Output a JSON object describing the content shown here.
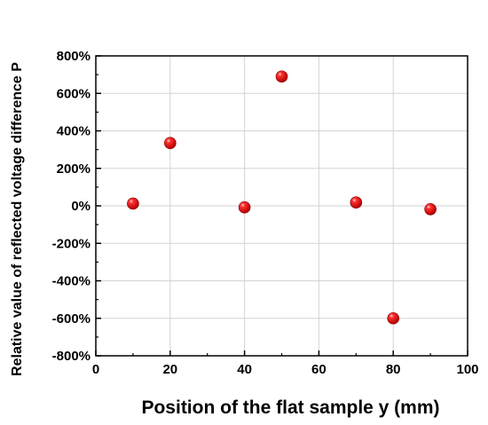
{
  "chart_data": {
    "type": "scatter",
    "title": "",
    "xlabel": "Position of the flat sample y (mm)",
    "ylabel": "Relative value of reflected voltage difference P",
    "xlim": [
      0,
      100
    ],
    "ylim": [
      -800,
      800
    ],
    "x_ticks": [
      0,
      20,
      40,
      60,
      80,
      100
    ],
    "y_ticks": [
      -800,
      -600,
      -400,
      -200,
      0,
      200,
      400,
      600,
      800
    ],
    "y_tick_labels": [
      "-800%",
      "-600%",
      "-400%",
      "-200%",
      "0%",
      "200%",
      "400%",
      "600%",
      "800%"
    ],
    "x_tick_labels": [
      "0",
      "20",
      "40",
      "60",
      "80",
      "100"
    ],
    "grid": true,
    "marker_color": "#e8000b",
    "points": [
      {
        "x": 10,
        "y": 12
      },
      {
        "x": 20,
        "y": 335
      },
      {
        "x": 40,
        "y": -8
      },
      {
        "x": 50,
        "y": 690
      },
      {
        "x": 70,
        "y": 18
      },
      {
        "x": 80,
        "y": -600
      },
      {
        "x": 90,
        "y": -18
      }
    ]
  }
}
